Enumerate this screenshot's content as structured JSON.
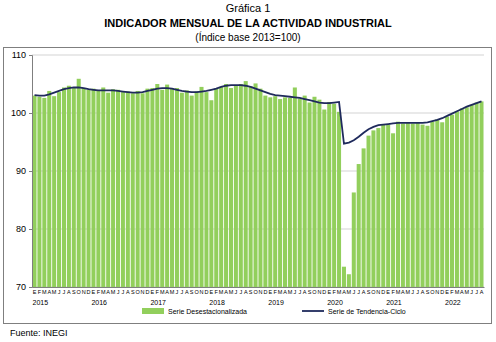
{
  "chart_data": {
    "type": "bar",
    "label": "Gráfica 1",
    "title": "INDICADOR MENSUAL DE LA ACTIVIDAD INDUSTRIAL",
    "subtitle": "(Índice base 2013=100)",
    "source": "Fuente: INEGI",
    "categories": [
      "E",
      "F",
      "M",
      "A",
      "M",
      "J",
      "J",
      "A",
      "S",
      "O",
      "N",
      "D",
      "E",
      "F",
      "M",
      "A",
      "M",
      "J",
      "J",
      "A",
      "S",
      "O",
      "N",
      "D",
      "E",
      "F",
      "M",
      "A",
      "M",
      "J",
      "J",
      "A",
      "S",
      "O",
      "N",
      "D",
      "E",
      "F",
      "M",
      "A",
      "M",
      "J",
      "J",
      "A",
      "S",
      "O",
      "N",
      "D",
      "E",
      "F",
      "M",
      "A",
      "M",
      "J",
      "J",
      "A",
      "S",
      "O",
      "N",
      "D",
      "E",
      "F",
      "M",
      "A",
      "M",
      "J",
      "J",
      "A",
      "S",
      "O",
      "N",
      "D",
      "E",
      "F",
      "M",
      "A",
      "M",
      "J",
      "J",
      "A",
      "S",
      "O",
      "N",
      "D",
      "E",
      "F",
      "M",
      "A",
      "M",
      "J",
      "J",
      "A"
    ],
    "years": [
      "2015",
      "2016",
      "2017",
      "2018",
      "2019",
      "2020",
      "2021",
      "2022"
    ],
    "series": [
      {
        "name": "Serie Desestacionalizada",
        "type": "bar",
        "color": "#92cf5c",
        "values": [
          103.0,
          102.8,
          102.6,
          103.8,
          102.9,
          103.6,
          104.4,
          104.7,
          104.3,
          105.9,
          104.3,
          104.0,
          104.2,
          103.9,
          104.4,
          103.5,
          104.1,
          104.0,
          103.6,
          103.7,
          103.4,
          103.8,
          103.4,
          104.2,
          104.3,
          105.0,
          104.0,
          104.9,
          104.2,
          104.3,
          103.5,
          103.9,
          103.0,
          103.7,
          104.5,
          103.6,
          102.2,
          104.2,
          104.5,
          105.0,
          104.3,
          104.8,
          105.0,
          105.5,
          104.6,
          105.1,
          104.2,
          103.0,
          102.7,
          102.9,
          102.4,
          102.7,
          102.6,
          104.4,
          102.5,
          103.0,
          101.8,
          102.8,
          102.3,
          100.6,
          101.9,
          101.6,
          100.2,
          73.5,
          72.2,
          86.3,
          91.2,
          93.9,
          96.1,
          97.0,
          97.4,
          98.0,
          98.0,
          96.5,
          98.5,
          98.2,
          98.4,
          98.2,
          98.3,
          98.0,
          97.8,
          98.5,
          98.9,
          98.4,
          99.4,
          99.7,
          100.3,
          100.8,
          101.0,
          101.4,
          101.8,
          102.0
        ]
      },
      {
        "name": "Serie de Tendencia-Ciclo",
        "type": "line",
        "color": "#1f2a5c",
        "values": [
          103.1,
          103.0,
          103.0,
          103.2,
          103.5,
          103.8,
          104.1,
          104.3,
          104.4,
          104.4,
          104.3,
          104.1,
          104.0,
          103.9,
          103.9,
          103.9,
          103.9,
          103.8,
          103.7,
          103.6,
          103.5,
          103.5,
          103.6,
          103.8,
          104.0,
          104.2,
          104.3,
          104.3,
          104.2,
          104.0,
          103.8,
          103.7,
          103.6,
          103.6,
          103.7,
          103.8,
          104.0,
          104.2,
          104.5,
          104.7,
          104.8,
          104.8,
          104.8,
          104.7,
          104.5,
          104.2,
          103.9,
          103.6,
          103.3,
          103.1,
          103.0,
          102.9,
          102.8,
          102.7,
          102.6,
          102.4,
          102.2,
          102.0,
          101.8,
          101.7,
          101.7,
          101.8,
          101.9,
          94.7,
          94.9,
          95.3,
          95.9,
          96.6,
          97.2,
          97.6,
          97.9,
          98.0,
          98.1,
          98.2,
          98.3,
          98.3,
          98.3,
          98.3,
          98.3,
          98.3,
          98.4,
          98.6,
          98.8,
          99.1,
          99.5,
          99.9,
          100.3,
          100.7,
          101.1,
          101.4,
          101.7,
          102.0
        ]
      }
    ],
    "ylim": [
      70,
      110
    ],
    "yticks": [
      70,
      80,
      90,
      100,
      110
    ],
    "grid": true
  }
}
